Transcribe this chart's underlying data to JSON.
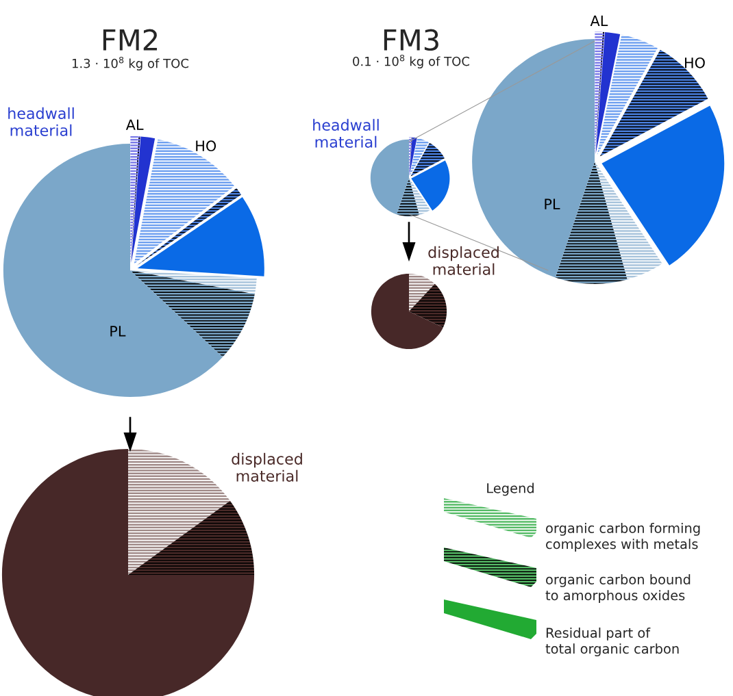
{
  "chart_data": [
    {
      "type": "pie",
      "title": "FM2",
      "subtitle": "1.3 · 10$^{8}$ kg of TOC",
      "annotations": [
        "headwall material"
      ],
      "categories": [
        "AL",
        null,
        null,
        "HO",
        null,
        null,
        null,
        null,
        "PL"
      ],
      "values": [
        1.0,
        0.2,
        1.8,
        11.5,
        1.0,
        10.5,
        2.0,
        9.0,
        63.0
      ],
      "colors": [
        "#7b7be8",
        "#4646d8",
        "#2233d0",
        "#6fa0f0",
        "#4a80e0",
        "#0a6ae6",
        "#a8c4dc",
        "#7ba7c9",
        "#7ba7c9"
      ]
    },
    {
      "type": "pie",
      "annotations": [
        "displaced material"
      ],
      "categories": [
        null,
        null,
        null
      ],
      "values": [
        15,
        10,
        75
      ],
      "colors": [
        "#a08a88",
        "#4a2a28",
        "#472828"
      ]
    },
    {
      "type": "pie",
      "title": "FM3",
      "subtitle": "0.1 · 10$^{8}$ kg of TOC",
      "annotations": [
        "headwall material"
      ],
      "categories": [
        "AL",
        null,
        null,
        null,
        "HO",
        null,
        null,
        null,
        "PL"
      ],
      "values": [
        1.0,
        0.2,
        2.0,
        5.0,
        9.0,
        23.5,
        5.0,
        9.5,
        44.8
      ],
      "colors": [
        "#7b7be8",
        "#4646d8",
        "#2233d0",
        "#6fa0f0",
        "#4a80e0",
        "#0a6ae6",
        "#a8c4dc",
        "#7ba7c9",
        "#7ba7c9"
      ]
    },
    {
      "type": "pie",
      "annotations": [
        "displaced material"
      ],
      "categories": [
        null,
        null,
        null
      ],
      "values": [
        12,
        20,
        68
      ],
      "colors": [
        "#a08a88",
        "#4a2a28",
        "#472828"
      ]
    },
    {
      "type": "other",
      "title": "Legend",
      "annotations": [
        "organic carbon forming complexes with metals",
        "organic carbon bound to amorphous oxides",
        "Residual part of total organic carbon"
      ]
    }
  ]
}
